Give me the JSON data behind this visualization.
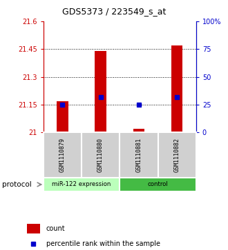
{
  "title": "GDS5373 / 223549_s_at",
  "samples": [
    "GSM1110879",
    "GSM1110880",
    "GSM1110881",
    "GSM1110882"
  ],
  "group_labels": [
    "miR-122 expression",
    "control"
  ],
  "red_bar_tops": [
    21.17,
    21.44,
    21.02,
    21.47
  ],
  "red_bar_base": 21.0,
  "blue_marker_pct": [
    25,
    32,
    25,
    32
  ],
  "ylim_left": [
    21.0,
    21.6
  ],
  "ylim_right": [
    0,
    100
  ],
  "yticks_left": [
    21,
    21.15,
    21.3,
    21.45,
    21.6
  ],
  "yticks_right": [
    0,
    25,
    50,
    75,
    100
  ],
  "ytick_labels_left": [
    "21",
    "21.15",
    "21.3",
    "21.45",
    "21.6"
  ],
  "ytick_labels_right": [
    "0",
    "25",
    "50",
    "75",
    "100%"
  ],
  "left_yaxis_color": "#cc0000",
  "right_yaxis_color": "#0000cc",
  "bar_color": "#cc0000",
  "marker_color": "#0000cc",
  "bar_width": 0.3,
  "marker_size": 5,
  "plot_bg": "#ffffff",
  "sample_box_color": "#d0d0d0",
  "group1_color": "#bbffbb",
  "group2_color": "#44bb44",
  "legend_count_color": "#cc0000",
  "legend_pct_color": "#0000cc",
  "grid_color": "black",
  "grid_linestyle": ":",
  "grid_linewidth": 0.7
}
